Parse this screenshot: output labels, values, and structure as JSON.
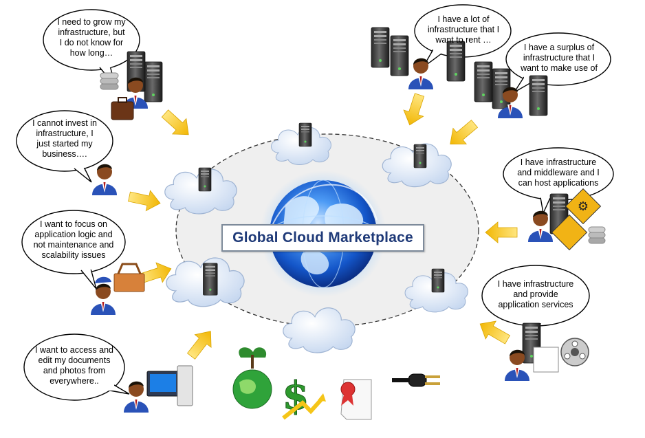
{
  "title": "Global Cloud Marketplace",
  "bubbles": [
    {
      "id": "grow",
      "lines": [
        "I need to grow my",
        "infrastructure, but",
        "I do not know for",
        "how long…"
      ]
    },
    {
      "id": "invest",
      "lines": [
        "I cannot invest in",
        "infrastructure, I",
        "just started my",
        "business…."
      ]
    },
    {
      "id": "focus",
      "lines": [
        "I want to focus on",
        "application logic and",
        "not maintenance and",
        "scalability issues"
      ]
    },
    {
      "id": "access",
      "lines": [
        "I want to access and",
        "edit my documents",
        "and photos from",
        "everywhere.."
      ]
    },
    {
      "id": "rent",
      "lines": [
        "I have a lot of",
        "infrastructure that I",
        "want to rent …"
      ]
    },
    {
      "id": "surplus",
      "lines": [
        "I have a surplus of",
        "infrastructure that I",
        "want to make use of"
      ]
    },
    {
      "id": "middleware",
      "lines": [
        "I have infrastructure",
        "and middleware and I",
        "can host applications"
      ]
    },
    {
      "id": "services",
      "lines": [
        "I have infrastructure",
        "and provide",
        "application services"
      ]
    }
  ],
  "colors": {
    "arrow": "#f5c518",
    "globe": "#1a63d8",
    "title_text": "#1f3a78",
    "cloud": "#e6eef9"
  }
}
